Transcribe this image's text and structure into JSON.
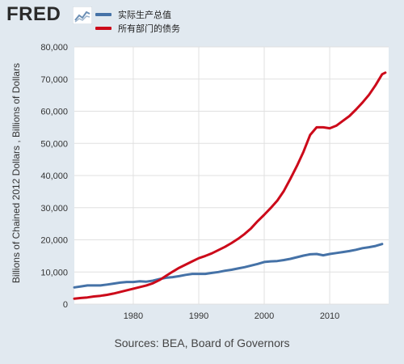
{
  "header": {
    "logo_text": "FRED",
    "logo_icon": "fred-graph-icon"
  },
  "colors": {
    "background": "#e1e9f0",
    "plot_background": "#ffffff",
    "gridline": "#e0e0e0",
    "series_blue": "#4572a7",
    "series_red": "#cc0a1a"
  },
  "footer": {
    "sources": "Sources: BEA, Board of Governors"
  },
  "chart_data": {
    "type": "line",
    "title": "",
    "xlabel": "",
    "ylabel": "Billions of Chained 2012 Dollars , Billions of Dollars",
    "xlim": [
      1971,
      2019
    ],
    "ylim": [
      0,
      80000
    ],
    "x_ticks": [
      1980,
      1990,
      2000,
      2010
    ],
    "y_ticks": [
      0,
      10000,
      20000,
      30000,
      40000,
      50000,
      60000,
      70000,
      80000
    ],
    "y_tick_labels": [
      "0",
      "10,000",
      "20,000",
      "30,000",
      "40,000",
      "50,000",
      "60,000",
      "70,000",
      "80,000"
    ],
    "grid": true,
    "legend_position": "top",
    "series": [
      {
        "name": "实际生产总值",
        "color": "#4572a7",
        "points": [
          [
            1971,
            5200
          ],
          [
            1972,
            5500
          ],
          [
            1973,
            5800
          ],
          [
            1974,
            5800
          ],
          [
            1975,
            5800
          ],
          [
            1976,
            6100
          ],
          [
            1977,
            6400
          ],
          [
            1978,
            6700
          ],
          [
            1979,
            6900
          ],
          [
            1980,
            6900
          ],
          [
            1981,
            7100
          ],
          [
            1982,
            7000
          ],
          [
            1983,
            7300
          ],
          [
            1984,
            7800
          ],
          [
            1985,
            8200
          ],
          [
            1986,
            8400
          ],
          [
            1987,
            8700
          ],
          [
            1988,
            9100
          ],
          [
            1989,
            9400
          ],
          [
            1990,
            9400
          ],
          [
            1991,
            9400
          ],
          [
            1992,
            9700
          ],
          [
            1993,
            10000
          ],
          [
            1994,
            10400
          ],
          [
            1995,
            10700
          ],
          [
            1996,
            11100
          ],
          [
            1997,
            11500
          ],
          [
            1998,
            12000
          ],
          [
            1999,
            12500
          ],
          [
            2000,
            13100
          ],
          [
            2001,
            13300
          ],
          [
            2002,
            13400
          ],
          [
            2003,
            13700
          ],
          [
            2004,
            14100
          ],
          [
            2005,
            14600
          ],
          [
            2006,
            15100
          ],
          [
            2007,
            15500
          ],
          [
            2008,
            15600
          ],
          [
            2009,
            15200
          ],
          [
            2010,
            15600
          ],
          [
            2011,
            15900
          ],
          [
            2012,
            16200
          ],
          [
            2013,
            16500
          ],
          [
            2014,
            16900
          ],
          [
            2015,
            17400
          ],
          [
            2016,
            17700
          ],
          [
            2017,
            18100
          ],
          [
            2018,
            18700
          ]
        ]
      },
      {
        "name": "所有部门的债务",
        "color": "#cc0a1a",
        "points": [
          [
            1971,
            1700
          ],
          [
            1972,
            1900
          ],
          [
            1973,
            2100
          ],
          [
            1974,
            2400
          ],
          [
            1975,
            2600
          ],
          [
            1976,
            2900
          ],
          [
            1977,
            3300
          ],
          [
            1978,
            3800
          ],
          [
            1979,
            4300
          ],
          [
            1980,
            4800
          ],
          [
            1981,
            5300
          ],
          [
            1982,
            5800
          ],
          [
            1983,
            6500
          ],
          [
            1984,
            7500
          ],
          [
            1985,
            8800
          ],
          [
            1986,
            10100
          ],
          [
            1987,
            11300
          ],
          [
            1988,
            12300
          ],
          [
            1989,
            13300
          ],
          [
            1990,
            14300
          ],
          [
            1991,
            15000
          ],
          [
            1992,
            15800
          ],
          [
            1993,
            16800
          ],
          [
            1994,
            17800
          ],
          [
            1995,
            19000
          ],
          [
            1996,
            20300
          ],
          [
            1997,
            21800
          ],
          [
            1998,
            23600
          ],
          [
            1999,
            25800
          ],
          [
            2000,
            27800
          ],
          [
            2001,
            29900
          ],
          [
            2002,
            32200
          ],
          [
            2003,
            35200
          ],
          [
            2004,
            39000
          ],
          [
            2005,
            43000
          ],
          [
            2006,
            47400
          ],
          [
            2007,
            52600
          ],
          [
            2008,
            55000
          ],
          [
            2009,
            55000
          ],
          [
            2010,
            54700
          ],
          [
            2011,
            55500
          ],
          [
            2012,
            57000
          ],
          [
            2013,
            58500
          ],
          [
            2014,
            60500
          ],
          [
            2015,
            62700
          ],
          [
            2016,
            65100
          ],
          [
            2017,
            68100
          ],
          [
            2018,
            71500
          ],
          [
            2018.5,
            72000
          ]
        ]
      }
    ]
  }
}
